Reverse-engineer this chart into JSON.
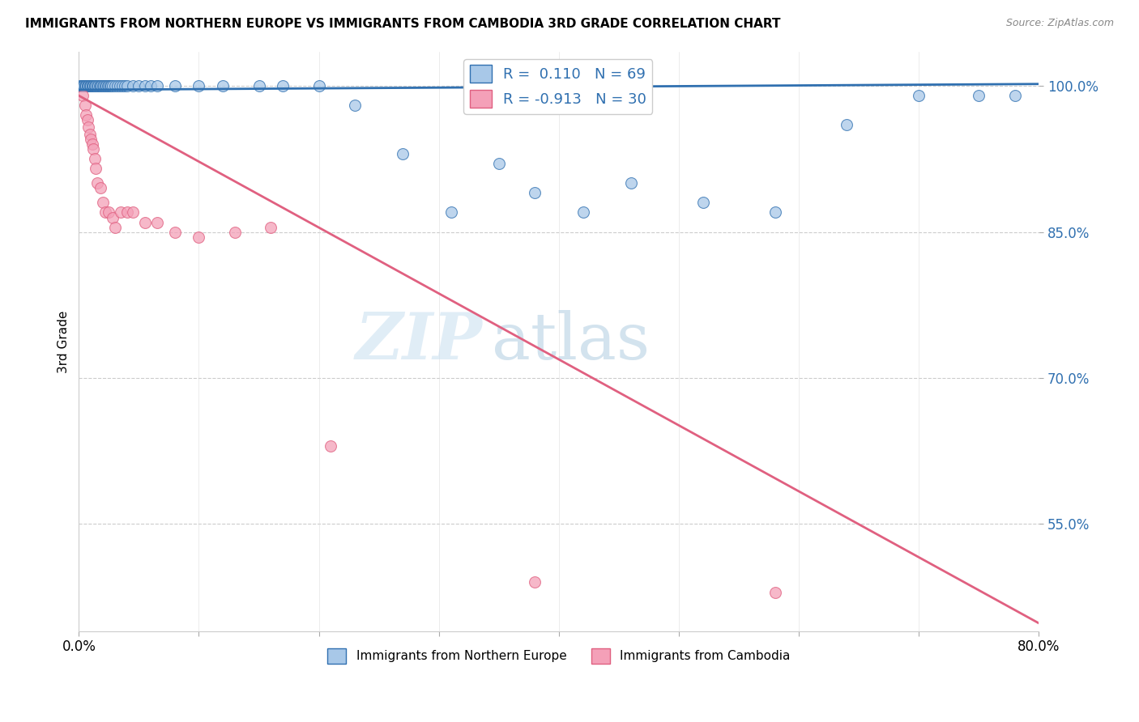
{
  "title": "IMMIGRANTS FROM NORTHERN EUROPE VS IMMIGRANTS FROM CAMBODIA 3RD GRADE CORRELATION CHART",
  "source": "Source: ZipAtlas.com",
  "xlabel_blue": "Immigrants from Northern Europe",
  "xlabel_pink": "Immigrants from Cambodia",
  "ylabel": "3rd Grade",
  "xlim": [
    0.0,
    0.8
  ],
  "ylim": [
    0.44,
    1.035
  ],
  "yticks": [
    0.55,
    0.7,
    0.85,
    1.0
  ],
  "ytick_labels": [
    "55.0%",
    "70.0%",
    "85.0%",
    "100.0%"
  ],
  "xticks": [
    0.0,
    0.1,
    0.2,
    0.3,
    0.4,
    0.5,
    0.6,
    0.7,
    0.8
  ],
  "xtick_labels": [
    "0.0%",
    "",
    "",
    "",
    "",
    "",
    "",
    "",
    "80.0%"
  ],
  "R_blue": 0.11,
  "N_blue": 69,
  "R_pink": -0.913,
  "N_pink": 30,
  "blue_color": "#a8c8e8",
  "pink_color": "#f4a0b8",
  "blue_line_color": "#3070b0",
  "pink_line_color": "#e06080",
  "watermark_zip": "ZIP",
  "watermark_atlas": "atlas",
  "blue_scatter_x": [
    0.001,
    0.002,
    0.003,
    0.003,
    0.004,
    0.004,
    0.005,
    0.005,
    0.006,
    0.006,
    0.007,
    0.007,
    0.008,
    0.008,
    0.009,
    0.009,
    0.01,
    0.01,
    0.011,
    0.011,
    0.012,
    0.012,
    0.013,
    0.013,
    0.014,
    0.015,
    0.016,
    0.017,
    0.018,
    0.019,
    0.02,
    0.021,
    0.022,
    0.023,
    0.024,
    0.025,
    0.026,
    0.027,
    0.028,
    0.03,
    0.032,
    0.034,
    0.036,
    0.038,
    0.04,
    0.045,
    0.05,
    0.055,
    0.06,
    0.065,
    0.08,
    0.1,
    0.12,
    0.15,
    0.17,
    0.2,
    0.23,
    0.27,
    0.31,
    0.35,
    0.38,
    0.42,
    0.46,
    0.52,
    0.58,
    0.64,
    0.7,
    0.75,
    0.78
  ],
  "blue_scatter_y": [
    1.0,
    1.0,
    1.0,
    1.0,
    1.0,
    1.0,
    1.0,
    1.0,
    1.0,
    1.0,
    1.0,
    1.0,
    1.0,
    1.0,
    1.0,
    1.0,
    1.0,
    1.0,
    1.0,
    1.0,
    1.0,
    1.0,
    1.0,
    1.0,
    1.0,
    1.0,
    1.0,
    1.0,
    1.0,
    1.0,
    1.0,
    1.0,
    1.0,
    1.0,
    1.0,
    1.0,
    1.0,
    1.0,
    1.0,
    1.0,
    1.0,
    1.0,
    1.0,
    1.0,
    1.0,
    1.0,
    1.0,
    1.0,
    1.0,
    1.0,
    1.0,
    1.0,
    1.0,
    1.0,
    1.0,
    1.0,
    0.98,
    0.93,
    0.87,
    0.92,
    0.89,
    0.87,
    0.9,
    0.88,
    0.87,
    0.96,
    0.99,
    0.99,
    0.99
  ],
  "pink_scatter_x": [
    0.003,
    0.005,
    0.006,
    0.007,
    0.008,
    0.009,
    0.01,
    0.011,
    0.012,
    0.013,
    0.014,
    0.015,
    0.018,
    0.02,
    0.022,
    0.025,
    0.028,
    0.03,
    0.035,
    0.04,
    0.045,
    0.055,
    0.065,
    0.08,
    0.1,
    0.13,
    0.16,
    0.21,
    0.38,
    0.58
  ],
  "pink_scatter_y": [
    0.99,
    0.98,
    0.97,
    0.965,
    0.958,
    0.95,
    0.945,
    0.94,
    0.935,
    0.925,
    0.915,
    0.9,
    0.895,
    0.88,
    0.87,
    0.87,
    0.865,
    0.855,
    0.87,
    0.87,
    0.87,
    0.86,
    0.86,
    0.85,
    0.845,
    0.85,
    0.855,
    0.63,
    0.49,
    0.48
  ],
  "blue_trend_x": [
    0.0,
    0.8
  ],
  "blue_trend_y": [
    0.996,
    1.002
  ],
  "pink_trend_x": [
    0.0,
    0.8
  ],
  "pink_trend_y": [
    0.99,
    0.448
  ]
}
